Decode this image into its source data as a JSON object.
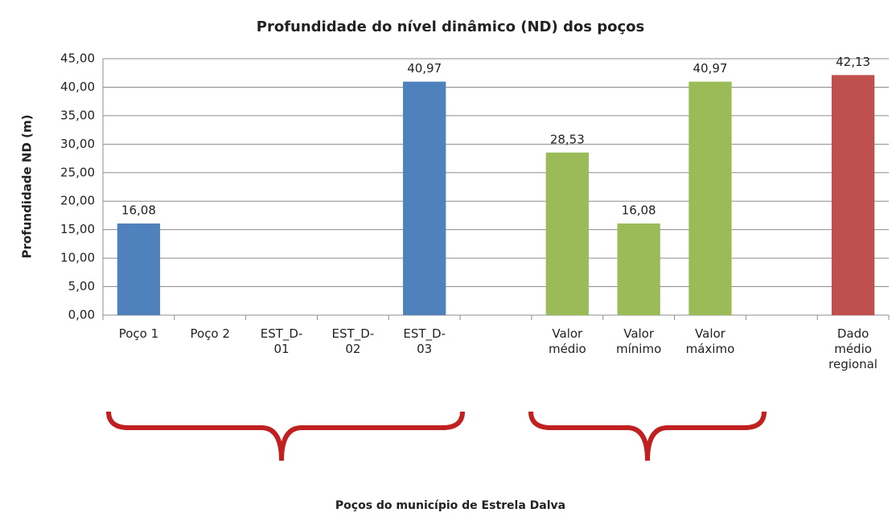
{
  "chart_data": {
    "type": "bar",
    "title": "Profundidade do nível dinâmico (ND) dos poços",
    "y_label": "Profundidade ND (m)",
    "annotation": "Poços do município de Estrela Dalva",
    "categories": [
      "Poço 1",
      "Poço 2",
      "EST_D-01",
      "EST_D-02",
      "EST_D-03",
      null,
      "Valor médio",
      "Valor mínimo",
      "Valor máximo",
      null,
      "Dado médio regional"
    ],
    "values": [
      16.08,
      null,
      null,
      null,
      40.97,
      null,
      28.53,
      16.08,
      40.97,
      null,
      42.13
    ],
    "value_labels": [
      "16,08",
      null,
      null,
      null,
      "40,97",
      null,
      "28,53",
      "16,08",
      "40,97",
      null,
      "42,13"
    ],
    "colors": [
      "#4f81bd",
      null,
      null,
      null,
      "#4f81bd",
      null,
      "#9bbb59",
      "#9bbb59",
      "#9bbb59",
      null,
      "#c0504d"
    ],
    "ylim": [
      0,
      45
    ],
    "yticks": [
      {
        "value": 0,
        "label": "0,00"
      },
      {
        "value": 5,
        "label": "5,00"
      },
      {
        "value": 10,
        "label": "10,00"
      },
      {
        "value": 15,
        "label": "15,00"
      },
      {
        "value": 20,
        "label": "20,00"
      },
      {
        "value": 25,
        "label": "25,00"
      },
      {
        "value": 30,
        "label": "30,00"
      },
      {
        "value": 35,
        "label": "35,00"
      },
      {
        "value": 40,
        "label": "40,00"
      },
      {
        "value": 45,
        "label": "45,00"
      }
    ],
    "grid": true
  }
}
